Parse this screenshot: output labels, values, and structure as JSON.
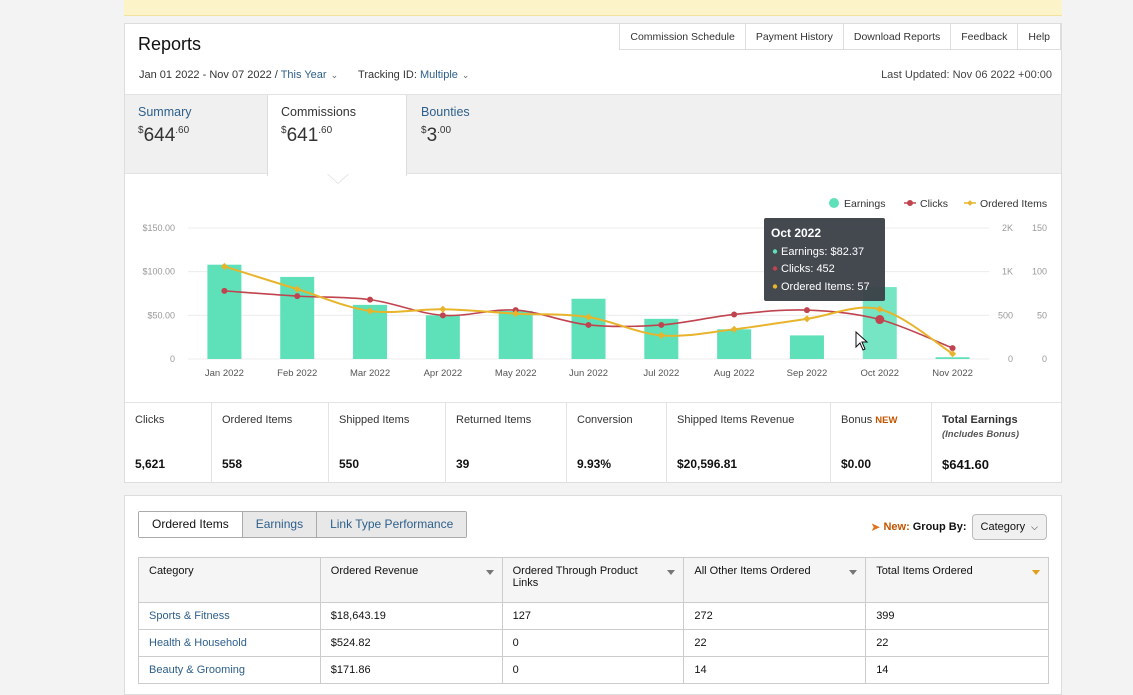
{
  "header": {
    "title": "Reports",
    "buttons": [
      "Commission Schedule",
      "Payment History",
      "Download Reports",
      "Feedback",
      "Help"
    ],
    "date_range": "Jan 01 2022 - Nov 07 2022 /",
    "date_preset": "This Year",
    "tracking_label": "Tracking ID:",
    "tracking_value": "Multiple",
    "last_updated": "Last Updated: Nov 06 2022 +00:00"
  },
  "summary_tabs": [
    {
      "label": "Summary",
      "currency": "$",
      "whole": "644",
      "cents": ".60"
    },
    {
      "label": "Commissions",
      "currency": "$",
      "whole": "641",
      "cents": ".60"
    },
    {
      "label": "Bounties",
      "currency": "$",
      "whole": "3",
      "cents": ".00"
    }
  ],
  "colors": {
    "earnings": "#5ee0b8",
    "clicks": "#c0444f",
    "ordered": "#e7b42c",
    "link": "#2d5f8b"
  },
  "chart_data": {
    "type": "bar",
    "categories": [
      "Jan 2022",
      "Feb 2022",
      "Mar 2022",
      "Apr 2022",
      "May 2022",
      "Jun 2022",
      "Jul 2022",
      "Aug 2022",
      "Sep 2022",
      "Oct 2022",
      "Nov 2022"
    ],
    "legend": [
      "Earnings",
      "Clicks",
      "Ordered Items"
    ],
    "left_ticks": [
      "$150.00",
      "$100.00",
      "$50.00",
      "0"
    ],
    "right_ticks_clicks": [
      "2K",
      "1K",
      "500",
      "0"
    ],
    "right_ticks_items": [
      "150",
      "100",
      "50",
      "0"
    ],
    "series": [
      {
        "name": "Earnings",
        "axis": "left",
        "values": [
          108,
          94,
          62,
          50,
          55,
          69,
          46,
          34,
          27,
          82.37,
          2
        ]
      },
      {
        "name": "Clicks",
        "axis": "right-clicks",
        "values": [
          780,
          720,
          680,
          500,
          560,
          390,
          390,
          510,
          560,
          452,
          125
        ]
      },
      {
        "name": "Ordered Items",
        "axis": "right-items",
        "values": [
          106,
          80,
          55,
          57,
          52,
          48,
          27,
          34,
          46,
          57,
          6
        ]
      }
    ],
    "ylim_left": [
      0,
      150
    ],
    "ylim_clicks": [
      0,
      1500
    ],
    "ylim_items": [
      0,
      150
    ],
    "tooltip": {
      "title": "Oct 2022",
      "earnings": "Earnings: $82.37",
      "clicks": "Clicks: 452",
      "ordered": "Ordered Items: 57"
    }
  },
  "stats": [
    {
      "label": "Clicks",
      "value": "5,621"
    },
    {
      "label": "Ordered Items",
      "value": "558"
    },
    {
      "label": "Shipped Items",
      "value": "550"
    },
    {
      "label": "Returned Items",
      "value": "39"
    },
    {
      "label": "Conversion",
      "value": "9.93%"
    },
    {
      "label": "Shipped Items Revenue",
      "value": "$20,596.81"
    },
    {
      "label": "Bonus",
      "badge": "NEW",
      "value": "$0.00"
    },
    {
      "label": "Total Earnings",
      "sub": "(Includes Bonus)",
      "value": "$641.60"
    }
  ],
  "report_tabs": [
    "Ordered Items",
    "Earnings",
    "Link Type Performance"
  ],
  "group_by": {
    "new_label": "New:",
    "label": "Group By:",
    "value": "Category"
  },
  "table": {
    "headers": [
      "Category",
      "Ordered Revenue",
      "Ordered Through Product Links",
      "All Other Items Ordered",
      "Total Items Ordered"
    ],
    "rows": [
      [
        "Sports & Fitness",
        "$18,643.19",
        "127",
        "272",
        "399"
      ],
      [
        "Health & Household",
        "$524.82",
        "0",
        "22",
        "22"
      ],
      [
        "Beauty & Grooming",
        "$171.86",
        "0",
        "14",
        "14"
      ]
    ]
  }
}
